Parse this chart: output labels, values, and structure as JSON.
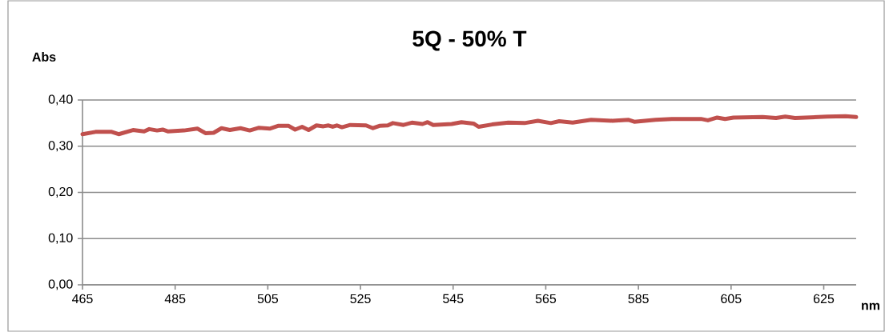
{
  "chart_data": {
    "type": "line",
    "title": "5Q - 50% T",
    "xlabel": "nm",
    "ylabel": "Abs",
    "x": [
      465,
      467.8,
      471.3,
      472.8,
      475.9,
      478.3,
      479.4,
      481.1,
      482.3,
      483.5,
      486.9,
      489.8,
      491.6,
      493.3,
      495.0,
      496.8,
      499.1,
      501.1,
      503.1,
      505.4,
      507.2,
      509.5,
      510.9,
      512.4,
      513.8,
      515.5,
      517.0,
      518.1,
      519.0,
      519.9,
      521.0,
      522.8,
      526.2,
      527.7,
      529.1,
      530.9,
      532.0,
      534.3,
      536.1,
      538.4,
      539.5,
      540.7,
      544.7,
      546.8,
      549.4,
      550.5,
      553.4,
      556.9,
      560.4,
      563.3,
      566.1,
      567.9,
      570.8,
      574.8,
      579.4,
      582.9,
      584.1,
      588.7,
      592.2,
      598.5,
      600.0,
      602.0,
      603.7,
      605.5,
      611.8,
      614.7,
      616.7,
      618.8,
      625.7,
      629.7,
      632
    ],
    "series": [
      {
        "color": "#c0504d",
        "values": [
          0.326,
          0.331,
          0.331,
          0.326,
          0.335,
          0.332,
          0.337,
          0.334,
          0.336,
          0.332,
          0.334,
          0.338,
          0.328,
          0.329,
          0.339,
          0.335,
          0.339,
          0.334,
          0.34,
          0.338,
          0.344,
          0.344,
          0.336,
          0.342,
          0.335,
          0.345,
          0.343,
          0.345,
          0.342,
          0.345,
          0.341,
          0.346,
          0.345,
          0.339,
          0.344,
          0.345,
          0.35,
          0.346,
          0.351,
          0.348,
          0.352,
          0.346,
          0.348,
          0.352,
          0.349,
          0.342,
          0.347,
          0.351,
          0.35,
          0.355,
          0.35,
          0.354,
          0.351,
          0.357,
          0.355,
          0.357,
          0.353,
          0.357,
          0.359,
          0.359,
          0.356,
          0.362,
          0.359,
          0.362,
          0.363,
          0.361,
          0.364,
          0.361,
          0.364,
          0.365,
          0.363
        ]
      }
    ],
    "xlim": [
      465,
      632
    ],
    "xticks": [
      465,
      485,
      505,
      525,
      545,
      565,
      585,
      605,
      625
    ],
    "ylim": [
      0,
      0.4
    ],
    "yticks": [
      {
        "value": 0,
        "label": "0,00"
      },
      {
        "value": 0.1,
        "label": "0,10"
      },
      {
        "value": 0.2,
        "label": "0,20"
      },
      {
        "value": 0.3,
        "label": "0,30"
      },
      {
        "value": 0.4,
        "label": "0,40"
      }
    ],
    "grid": "y",
    "marker": "none",
    "line_style": "solid"
  }
}
